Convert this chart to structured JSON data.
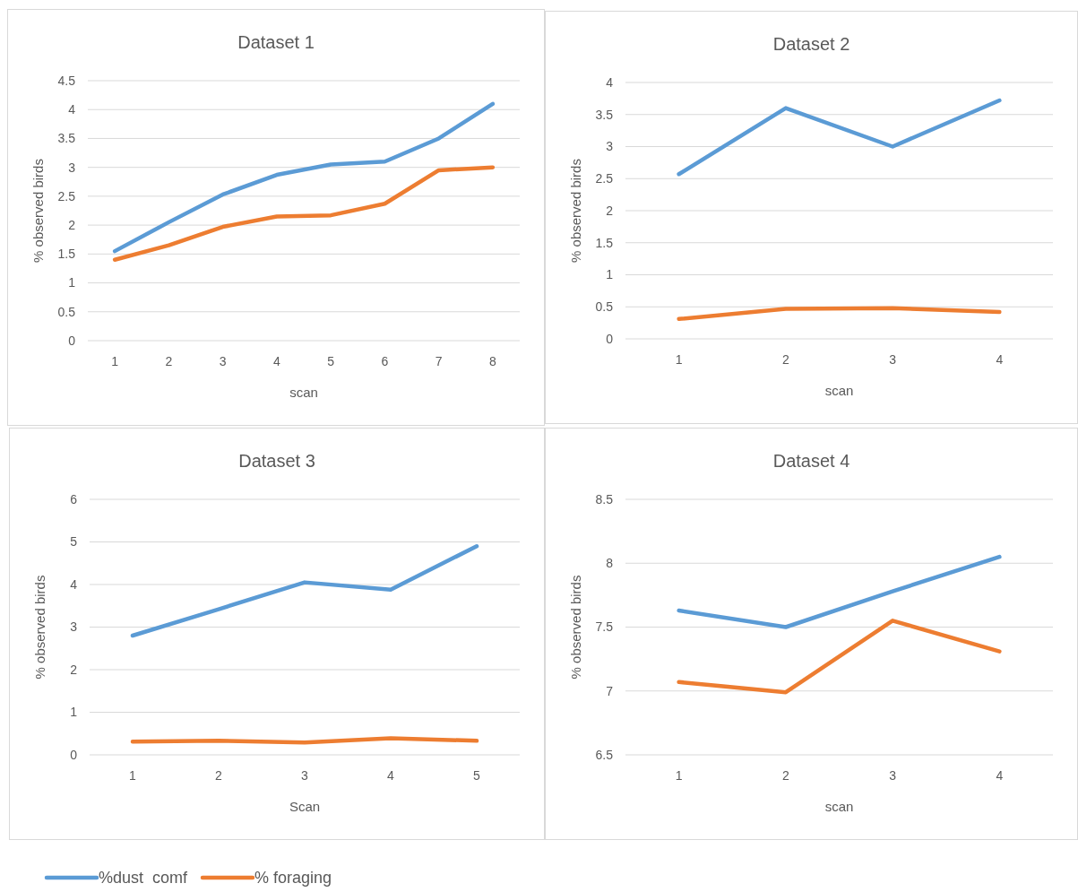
{
  "chart_data": [
    {
      "type": "line",
      "title": "Dataset 1",
      "xlabel": "scan",
      "ylabel": "% observed birds",
      "categories": [
        "1",
        "2",
        "3",
        "4",
        "5",
        "6",
        "7",
        "8"
      ],
      "ylim": [
        0,
        4.5
      ],
      "yticks": [
        0,
        0.5,
        1,
        1.5,
        2,
        2.5,
        3,
        3.5,
        4,
        4.5
      ],
      "grid": "y",
      "legend": false,
      "line_style": "solid",
      "marker": "none",
      "series": [
        {
          "color": "#5b9bd5",
          "values": [
            1.55,
            2.05,
            2.53,
            2.87,
            3.05,
            3.1,
            3.5,
            4.1
          ]
        },
        {
          "color": "#ed7d31",
          "values": [
            1.4,
            1.65,
            1.97,
            2.15,
            2.17,
            2.37,
            2.95,
            3.0
          ]
        }
      ]
    },
    {
      "type": "line",
      "title": "Dataset 2",
      "xlabel": "scan",
      "ylabel": "% observed birds",
      "categories": [
        "1",
        "2",
        "3",
        "4"
      ],
      "ylim": [
        0,
        4
      ],
      "yticks": [
        0,
        0.5,
        1,
        1.5,
        2,
        2.5,
        3,
        3.5,
        4
      ],
      "grid": "y",
      "legend": false,
      "line_style": "solid",
      "marker": "none",
      "series": [
        {
          "color": "#5b9bd5",
          "values": [
            2.57,
            3.6,
            3.0,
            3.72
          ]
        },
        {
          "color": "#ed7d31",
          "values": [
            0.31,
            0.47,
            0.48,
            0.42
          ]
        }
      ]
    },
    {
      "type": "line",
      "title": "Dataset 3",
      "xlabel": "Scan",
      "ylabel": "% observed birds",
      "categories": [
        "1",
        "2",
        "3",
        "4",
        "5"
      ],
      "ylim": [
        0,
        6
      ],
      "yticks": [
        0,
        1,
        2,
        3,
        4,
        5,
        6
      ],
      "grid": "y",
      "legend": "bottom",
      "line_style": "solid",
      "marker": "none",
      "series": [
        {
          "name": "%dust  comf",
          "color": "#5b9bd5",
          "values": [
            2.8,
            3.42,
            4.05,
            3.88,
            4.9
          ]
        },
        {
          "name": "% foraging",
          "color": "#ed7d31",
          "values": [
            0.31,
            0.33,
            0.29,
            0.39,
            0.33
          ]
        }
      ]
    },
    {
      "type": "line",
      "title": "Dataset 4",
      "xlabel": "scan",
      "ylabel": "% observed birds",
      "categories": [
        "1",
        "2",
        "3",
        "4"
      ],
      "ylim": [
        6.5,
        8.5
      ],
      "yticks": [
        6.5,
        7,
        7.5,
        8,
        8.5
      ],
      "grid": "y",
      "legend": false,
      "line_style": "solid",
      "marker": "none",
      "series": [
        {
          "color": "#5b9bd5",
          "values": [
            7.63,
            7.5,
            7.78,
            8.05
          ]
        },
        {
          "color": "#ed7d31",
          "values": [
            7.07,
            6.99,
            7.55,
            7.31
          ]
        }
      ]
    }
  ]
}
